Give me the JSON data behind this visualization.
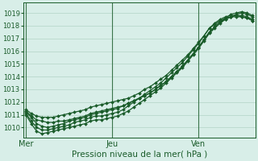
{
  "title": "",
  "xlabel": "Pression niveau de la mer( hPa )",
  "ylabel": "",
  "bg_color": "#d8eee8",
  "grid_color": "#b8d8cc",
  "line_color": "#1a5c2a",
  "axis_label_color": "#1a5c2a",
  "tick_label_color": "#1a5c2a",
  "ylim": [
    1009.2,
    1019.8
  ],
  "yticks": [
    1010,
    1011,
    1012,
    1013,
    1014,
    1015,
    1016,
    1017,
    1018,
    1019
  ],
  "day_labels": [
    "Mer",
    "Jeu",
    "Ven"
  ],
  "day_positions": [
    0,
    16,
    32
  ],
  "total_points": 43,
  "series": [
    [
      1011.2,
      1010.8,
      1010.3,
      1010.1,
      1010.0,
      1010.1,
      1010.2,
      1010.3,
      1010.5,
      1010.6,
      1010.7,
      1010.8,
      1011.0,
      1011.1,
      1011.2,
      1011.3,
      1011.4,
      1011.5,
      1011.7,
      1011.9,
      1012.1,
      1012.3,
      1012.5,
      1012.7,
      1013.0,
      1013.3,
      1013.6,
      1014.0,
      1014.4,
      1014.8,
      1015.3,
      1015.8,
      1016.3,
      1016.9,
      1017.5,
      1017.9,
      1018.3,
      1018.6,
      1018.9,
      1019.0,
      1019.1,
      1019.0,
      1018.8
    ],
    [
      1011.0,
      1010.3,
      1009.7,
      1009.5,
      1009.6,
      1009.7,
      1009.8,
      1009.9,
      1010.0,
      1010.1,
      1010.2,
      1010.3,
      1010.5,
      1010.6,
      1010.6,
      1010.7,
      1010.8,
      1010.9,
      1011.1,
      1011.3,
      1011.6,
      1011.9,
      1012.2,
      1012.5,
      1012.8,
      1013.1,
      1013.5,
      1013.9,
      1014.3,
      1014.7,
      1015.2,
      1015.7,
      1016.2,
      1016.8,
      1017.4,
      1017.8,
      1018.2,
      1018.5,
      1018.7,
      1018.9,
      1019.0,
      1018.9,
      1018.7
    ],
    [
      1011.3,
      1010.9,
      1010.6,
      1010.5,
      1010.4,
      1010.4,
      1010.5,
      1010.5,
      1010.6,
      1010.7,
      1010.8,
      1010.9,
      1011.1,
      1011.2,
      1011.3,
      1011.4,
      1011.5,
      1011.6,
      1011.7,
      1011.9,
      1012.1,
      1012.3,
      1012.5,
      1012.7,
      1013.0,
      1013.3,
      1013.6,
      1014.0,
      1014.4,
      1014.8,
      1015.3,
      1015.8,
      1016.3,
      1016.9,
      1017.5,
      1017.9,
      1018.3,
      1018.5,
      1018.7,
      1018.8,
      1018.8,
      1018.7,
      1018.5
    ],
    [
      1011.1,
      1010.5,
      1010.0,
      1009.8,
      1009.8,
      1009.9,
      1010.0,
      1010.1,
      1010.2,
      1010.4,
      1010.5,
      1010.6,
      1010.8,
      1010.9,
      1010.9,
      1011.0,
      1011.1,
      1011.2,
      1011.4,
      1011.7,
      1012.0,
      1012.3,
      1012.6,
      1012.9,
      1013.2,
      1013.5,
      1013.9,
      1014.3,
      1014.7,
      1015.1,
      1015.6,
      1016.1,
      1016.6,
      1017.2,
      1017.8,
      1018.2,
      1018.5,
      1018.7,
      1018.8,
      1018.8,
      1018.7,
      1018.6,
      1018.4
    ],
    [
      1011.4,
      1011.1,
      1010.9,
      1010.8,
      1010.8,
      1010.8,
      1010.9,
      1011.0,
      1011.1,
      1011.2,
      1011.3,
      1011.4,
      1011.6,
      1011.7,
      1011.8,
      1011.9,
      1012.0,
      1012.1,
      1012.2,
      1012.3,
      1012.5,
      1012.7,
      1013.0,
      1013.2,
      1013.5,
      1013.8,
      1014.1,
      1014.5,
      1014.9,
      1015.3,
      1015.7,
      1016.2,
      1016.7,
      1017.2,
      1017.8,
      1018.1,
      1018.4,
      1018.6,
      1018.7,
      1018.7,
      1018.7,
      1018.6,
      1018.4
    ]
  ]
}
